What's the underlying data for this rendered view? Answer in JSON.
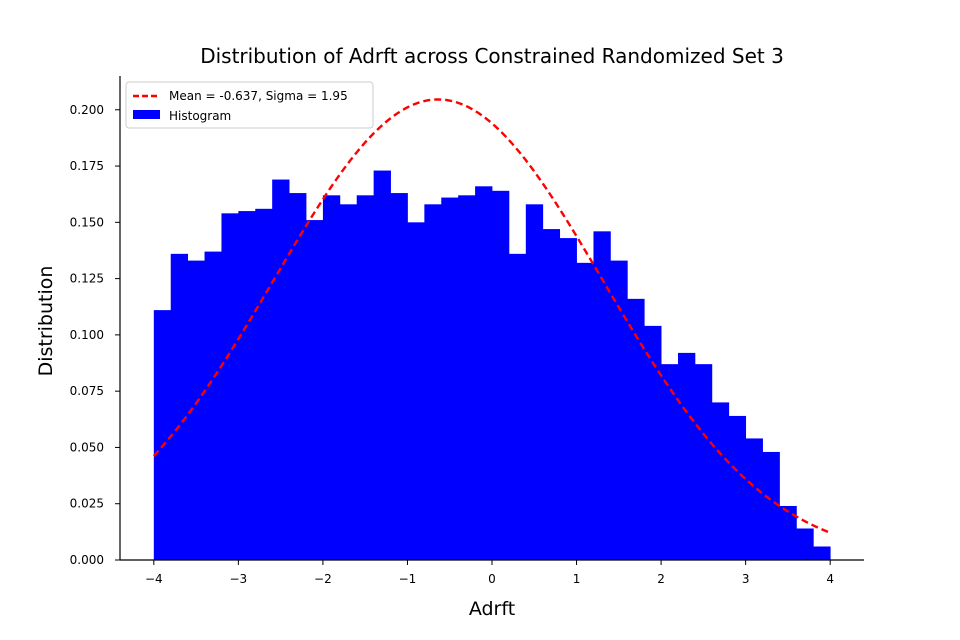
{
  "chart_data": {
    "type": "bar",
    "title": "Distribution of Adrft across Constrained Randomized Set 3",
    "xlabel": "Adrft",
    "ylabel": "Distribution",
    "xlim": [
      -4.4,
      4.4
    ],
    "ylim": [
      0,
      0.215
    ],
    "xticks": [
      -4,
      -3,
      -2,
      -1,
      0,
      1,
      2,
      3,
      4
    ],
    "xtick_labels": [
      "−4",
      "−3",
      "−2",
      "−1",
      "0",
      "1",
      "2",
      "3",
      "4"
    ],
    "yticks": [
      0.0,
      0.025,
      0.05,
      0.075,
      0.1,
      0.125,
      0.15,
      0.175,
      0.2
    ],
    "ytick_labels": [
      "0.000",
      "0.025",
      "0.050",
      "0.075",
      "0.100",
      "0.125",
      "0.150",
      "0.175",
      "0.200"
    ],
    "grid": false,
    "legend_position": "top-left",
    "histogram": {
      "name": "Histogram",
      "color": "#0000ff",
      "bin_start": -4,
      "bin_width": 0.2,
      "values": [
        0.111,
        0.136,
        0.133,
        0.137,
        0.154,
        0.155,
        0.156,
        0.169,
        0.163,
        0.151,
        0.162,
        0.158,
        0.162,
        0.173,
        0.163,
        0.15,
        0.158,
        0.161,
        0.162,
        0.166,
        0.164,
        0.136,
        0.158,
        0.147,
        0.143,
        0.132,
        0.146,
        0.133,
        0.116,
        0.104,
        0.087,
        0.092,
        0.087,
        0.07,
        0.064,
        0.054,
        0.048,
        0.024,
        0.014,
        0.006
      ]
    },
    "fit_curve": {
      "name": "Mean = -0.637, Sigma = 1.95",
      "color": "#ff0000",
      "style": "dashed",
      "mean": -0.637,
      "sigma": 1.95,
      "x_range": [
        -4,
        4
      ]
    }
  }
}
